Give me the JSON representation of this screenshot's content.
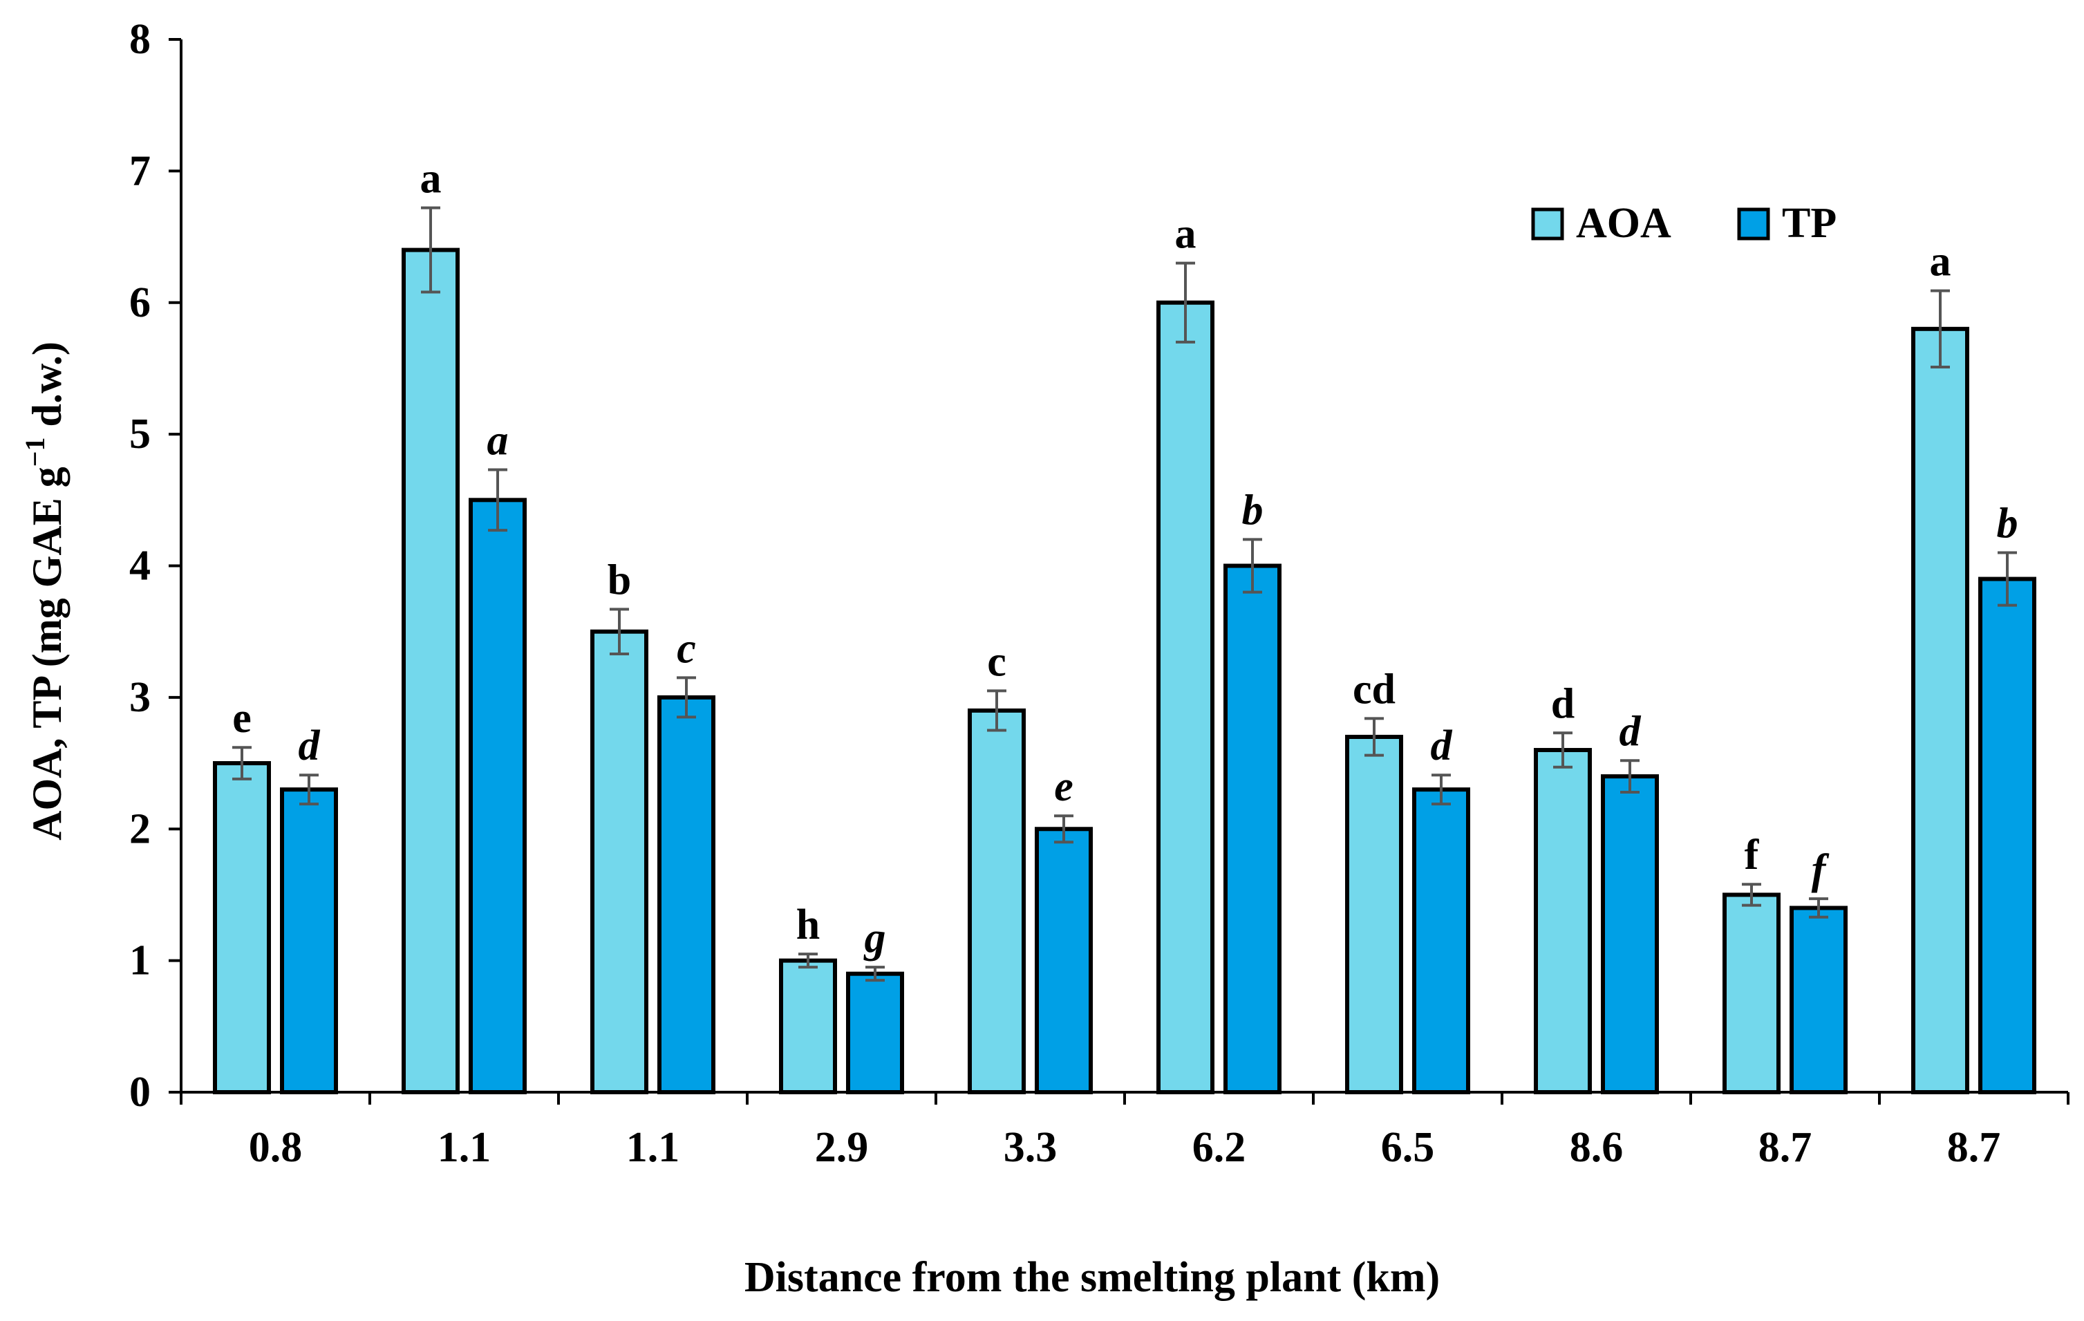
{
  "chart_data": {
    "type": "bar",
    "title": "",
    "xlabel": "Distance from the smelting plant (km)",
    "ylabel": "AOA, TP (mg GAE g",
    "ylabel_sup": "−1",
    "ylabel_tail": " d.w.)",
    "ylim": [
      0,
      8
    ],
    "yticks": [
      "0",
      "1",
      "2",
      "3",
      "4",
      "5",
      "6",
      "7",
      "8"
    ],
    "grid": false,
    "legend_position": "top-right",
    "categories": [
      "0.8",
      "1.1",
      "1.1",
      "2.9",
      "3.3",
      "6.2",
      "6.5",
      "8.6",
      "8.7",
      "8.7"
    ],
    "series": [
      {
        "name": "AOA",
        "color": "#73d8ec",
        "values": [
          2.5,
          6.4,
          3.5,
          1.0,
          2.9,
          6.0,
          2.7,
          2.6,
          1.5,
          5.8
        ],
        "errors": [
          0.12,
          0.32,
          0.17,
          0.05,
          0.15,
          0.3,
          0.14,
          0.13,
          0.08,
          0.29
        ],
        "labels": [
          "e",
          "a",
          "b",
          "h",
          "c",
          "a",
          "cd",
          "d",
          "f",
          "a"
        ],
        "italic": false
      },
      {
        "name": "TP",
        "color": "#00a0e6",
        "values": [
          2.3,
          4.5,
          3.0,
          0.9,
          2.0,
          4.0,
          2.3,
          2.4,
          1.4,
          3.9
        ],
        "errors": [
          0.11,
          0.23,
          0.15,
          0.05,
          0.1,
          0.2,
          0.11,
          0.12,
          0.07,
          0.2
        ],
        "labels": [
          "d",
          "a",
          "c",
          "g",
          "e",
          "b",
          "d",
          "d",
          "f",
          "b"
        ],
        "italic": true
      }
    ]
  }
}
